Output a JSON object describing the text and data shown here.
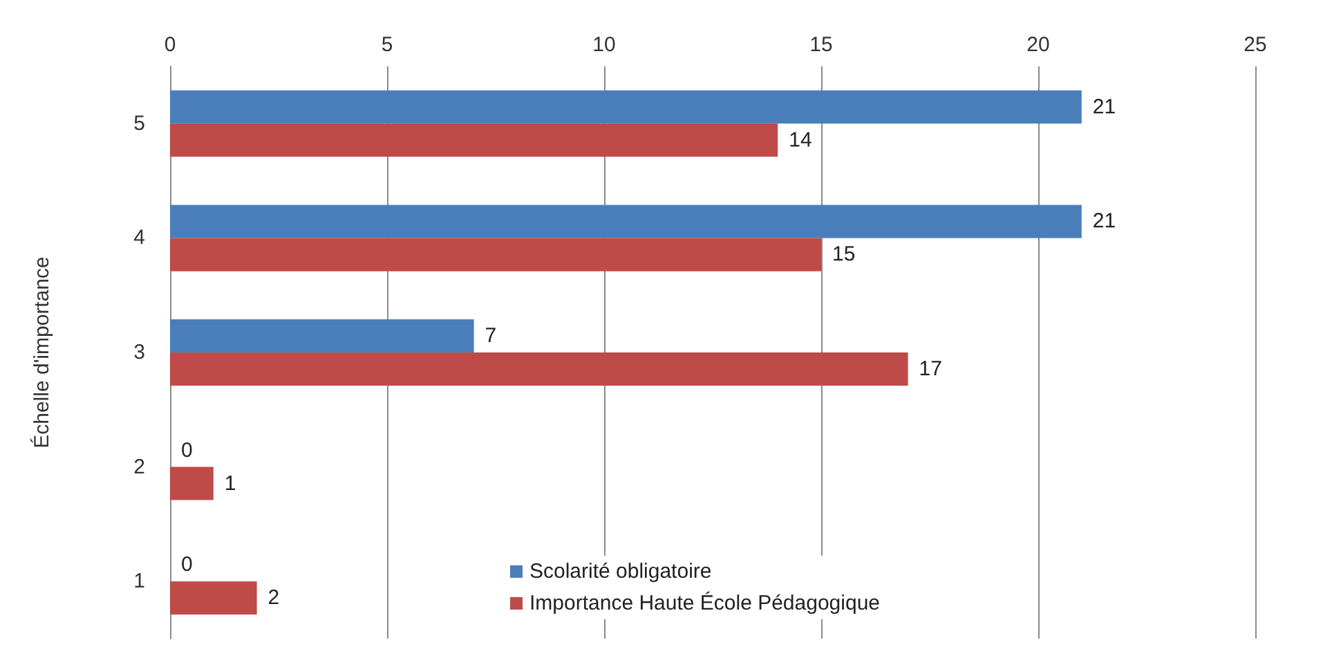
{
  "chart_data": {
    "type": "bar",
    "orientation": "horizontal",
    "ylabel": "Échelle d'importance",
    "categories": [
      "5",
      "4",
      "3",
      "2",
      "1"
    ],
    "series": [
      {
        "name": "Scolarité obligatoire",
        "color": "#4a7ebb",
        "values": [
          21,
          21,
          7,
          0,
          0
        ]
      },
      {
        "name": "Importance Haute École Pédagogique",
        "color": "#be4b48",
        "values": [
          14,
          15,
          17,
          1,
          2
        ]
      }
    ],
    "xlim": [
      0,
      25
    ],
    "xticks": [
      0,
      5,
      10,
      15,
      20,
      25
    ],
    "grid": "x",
    "legend": "bottom",
    "data_labels": true
  }
}
